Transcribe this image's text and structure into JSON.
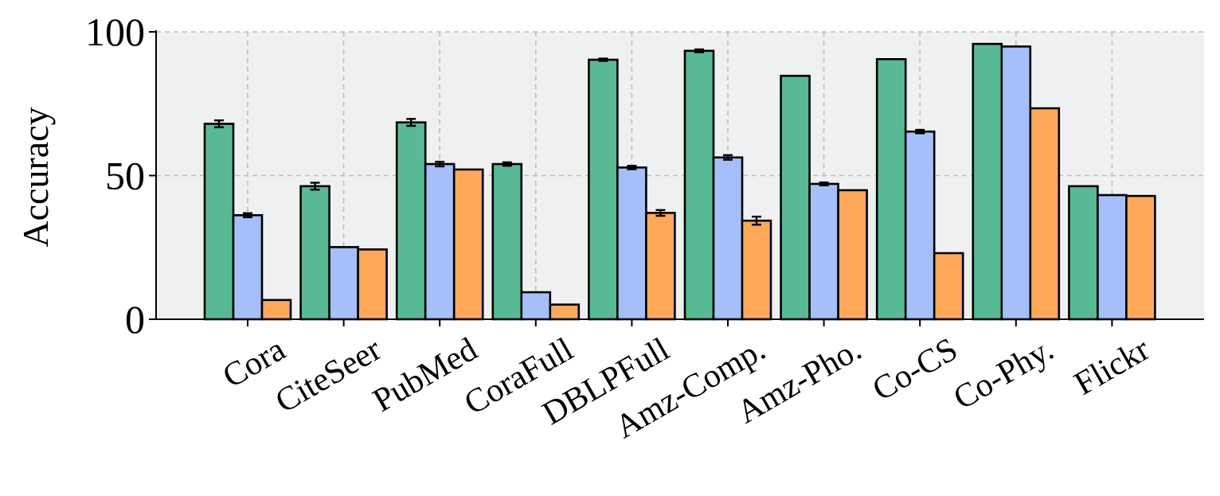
{
  "chart_data": {
    "type": "bar",
    "ylabel": "Accuracy",
    "xlabel": "",
    "ylim": [
      0,
      100
    ],
    "yticks": [
      "0",
      "50",
      "100"
    ],
    "grid": true,
    "categories": [
      "Cora",
      "CiteSeer",
      "PubMed",
      "CoraFull",
      "DBLPFull",
      "Amz-Comp.",
      "Amz-Pho.",
      "Co-CS",
      "Co-Phy.",
      "Flickr"
    ],
    "series": [
      {
        "color": "#58b995",
        "values": [
          68.0,
          46.3,
          68.5,
          54.0,
          90.3,
          93.4,
          84.7,
          90.5,
          95.8,
          46.3
        ],
        "errors": [
          1.2,
          1.2,
          1.2,
          0.6,
          0.4,
          0.5,
          0,
          0,
          0,
          0
        ]
      },
      {
        "color": "#a7bff8",
        "values": [
          36.2,
          25.1,
          54.0,
          9.4,
          52.8,
          56.3,
          47.1,
          65.3,
          94.9,
          43.2
        ],
        "errors": [
          0.7,
          0,
          0.8,
          0,
          0.6,
          0.8,
          0.5,
          0.6,
          0,
          0
        ]
      },
      {
        "color": "#fea85b",
        "values": [
          6.7,
          24.3,
          52.1,
          5.1,
          37.0,
          34.3,
          44.9,
          23.0,
          73.4,
          42.9
        ],
        "errors": [
          0,
          0,
          0,
          0,
          1.0,
          1.4,
          0,
          0,
          0,
          0
        ]
      }
    ],
    "background": "#eff0f2",
    "gridColor": "#bdbdbd"
  }
}
